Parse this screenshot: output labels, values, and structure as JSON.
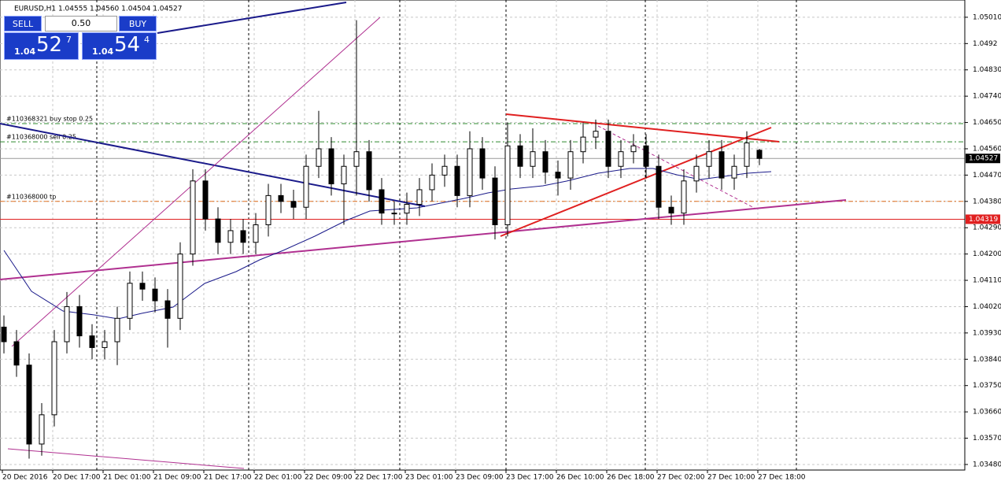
{
  "chart_data": {
    "type": "candlestick",
    "title": "EURUSD,H1  1.04555 1.04560 1.04504 1.04527",
    "ylim": [
      1.03461,
      1.05069
    ],
    "yticks": [
      {
        "value": 1.0501,
        "label": "1.05010"
      },
      1.0492,
      {
        "value": 1.0483,
        "label": "1.04830"
      },
      {
        "value": 1.0474,
        "label": "1.04740"
      },
      {
        "value": 1.0465,
        "label": "1.04650"
      },
      {
        "value": 1.0456,
        "label": "1.04560"
      },
      {
        "value": 1.0447,
        "label": "1.04470"
      },
      {
        "value": 1.0438,
        "label": "1.04380"
      },
      {
        "value": 1.0429,
        "label": "1.04290"
      },
      {
        "value": 1.042,
        "label": "1.04200"
      },
      {
        "value": 1.0411,
        "label": "1.04110"
      },
      {
        "value": 1.0402,
        "label": "1.04020"
      },
      {
        "value": 1.0393,
        "label": "1.03930"
      },
      {
        "value": 1.0384,
        "label": "1.03840"
      },
      {
        "value": 1.0375,
        "label": "1.03750"
      },
      {
        "value": 1.0366,
        "label": "1.03660"
      },
      {
        "value": 1.0357,
        "label": "1.03570"
      },
      {
        "value": 1.0348,
        "label": "1.03480"
      }
    ],
    "grid": true,
    "xtick_labels": [
      "20 Dec 2016",
      "20 Dec 17:00",
      "21 Dec 01:00",
      "21 Dec 09:00",
      "21 Dec 17:00",
      "22 Dec 01:00",
      "22 Dec 09:00",
      "22 Dec 17:00",
      "23 Dec 01:00",
      "23 Dec 09:00",
      "23 Dec 17:00",
      "26 Dec 10:00",
      "26 Dec 18:00",
      "27 Dec 02:00",
      "27 Dec 10:00",
      "27 Dec 18:00"
    ],
    "open": [
      1.0395,
      1.039,
      1.0382,
      1.0355,
      1.0365,
      1.039,
      1.0402,
      1.0392,
      1.0388,
      1.039,
      1.0398,
      1.041,
      1.0408,
      1.0404,
      1.0398,
      1.042,
      1.0445,
      1.0432,
      1.0424,
      1.0428,
      1.0424,
      1.043,
      1.044,
      1.0438,
      1.0436,
      1.045,
      1.0456,
      1.0444,
      1.045,
      1.0455,
      1.0442,
      1.0434,
      1.0434,
      1.0437,
      1.0442,
      1.0447,
      1.045,
      1.044,
      1.0456,
      1.0446,
      1.043,
      1.0457,
      1.045,
      1.0455,
      1.0448,
      1.0446,
      1.0455,
      1.046,
      1.0462,
      1.045,
      1.0455,
      1.0457,
      1.045,
      1.0436,
      1.0434,
      1.0445,
      1.045,
      1.0455,
      1.0446,
      1.045,
      1.04555
    ],
    "high": [
      1.0399,
      1.0394,
      1.0386,
      1.0369,
      1.0394,
      1.0407,
      1.0406,
      1.0396,
      1.0394,
      1.0402,
      1.0414,
      1.0414,
      1.0412,
      1.0408,
      1.0424,
      1.0449,
      1.0449,
      1.0436,
      1.0432,
      1.0432,
      1.0434,
      1.0444,
      1.0444,
      1.0442,
      1.0454,
      1.0469,
      1.046,
      1.0454,
      1.05,
      1.0459,
      1.0446,
      1.0438,
      1.0441,
      1.0446,
      1.0451,
      1.0454,
      1.0454,
      1.0462,
      1.046,
      1.045,
      1.0465,
      1.0461,
      1.0463,
      1.0459,
      1.0452,
      1.0459,
      1.0465,
      1.0466,
      1.0466,
      1.0459,
      1.0461,
      1.0461,
      1.0454,
      1.044,
      1.0449,
      1.0454,
      1.0459,
      1.0459,
      1.0454,
      1.0462,
      1.0456
    ],
    "low": [
      1.0386,
      1.0378,
      1.035,
      1.0351,
      1.0361,
      1.0386,
      1.0388,
      1.0384,
      1.0384,
      1.0382,
      1.0394,
      1.0404,
      1.04,
      1.0388,
      1.0394,
      1.0416,
      1.0428,
      1.042,
      1.042,
      1.042,
      1.042,
      1.0426,
      1.0434,
      1.0432,
      1.0432,
      1.0446,
      1.044,
      1.043,
      1.044,
      1.0438,
      1.043,
      1.043,
      1.043,
      1.0433,
      1.0438,
      1.0443,
      1.0436,
      1.0436,
      1.0442,
      1.0425,
      1.0426,
      1.0446,
      1.0446,
      1.0444,
      1.044,
      1.0442,
      1.0451,
      1.0456,
      1.0446,
      1.0446,
      1.0451,
      1.0446,
      1.0432,
      1.043,
      1.043,
      1.0441,
      1.0446,
      1.0442,
      1.0442,
      1.0446,
      1.04504
    ],
    "close": [
      1.039,
      1.0382,
      1.0355,
      1.0365,
      1.039,
      1.0402,
      1.0392,
      1.0388,
      1.039,
      1.0398,
      1.041,
      1.0408,
      1.0404,
      1.0398,
      1.042,
      1.0445,
      1.0432,
      1.0424,
      1.0428,
      1.0424,
      1.043,
      1.044,
      1.0438,
      1.0436,
      1.045,
      1.0456,
      1.0444,
      1.045,
      1.0455,
      1.0442,
      1.0434,
      1.0434,
      1.0437,
      1.0442,
      1.0447,
      1.045,
      1.044,
      1.0456,
      1.0446,
      1.043,
      1.0457,
      1.045,
      1.0455,
      1.0448,
      1.0446,
      1.0455,
      1.046,
      1.0462,
      1.045,
      1.0455,
      1.0457,
      1.045,
      1.0436,
      1.0434,
      1.0445,
      1.045,
      1.0455,
      1.0446,
      1.045,
      1.0458,
      1.04527
    ],
    "price": {
      "value": 1.04527,
      "label": "1.04527",
      "color": "#000000"
    },
    "levels": [
      {
        "name": "#110368321 buy stop 0.25",
        "value": 1.04646,
        "color": "#2e8b2e"
      },
      {
        "name": "#110368000 sell 0.25",
        "value": 1.04584,
        "color": "#2e8b2e"
      },
      {
        "name": "#110368000 tp",
        "value": 1.0438,
        "color": "#e07020"
      },
      {
        "value": 1.04319,
        "label": "1.04319",
        "color": "#e02020"
      }
    ]
  },
  "panel": {
    "sell": "SELL",
    "lot": "0.50",
    "buy": "BUY",
    "bid": {
      "big": "1.04",
      "main": "52",
      "sup": "7"
    },
    "ask": {
      "big": "1.04",
      "main": "54",
      "sup": "4"
    }
  }
}
